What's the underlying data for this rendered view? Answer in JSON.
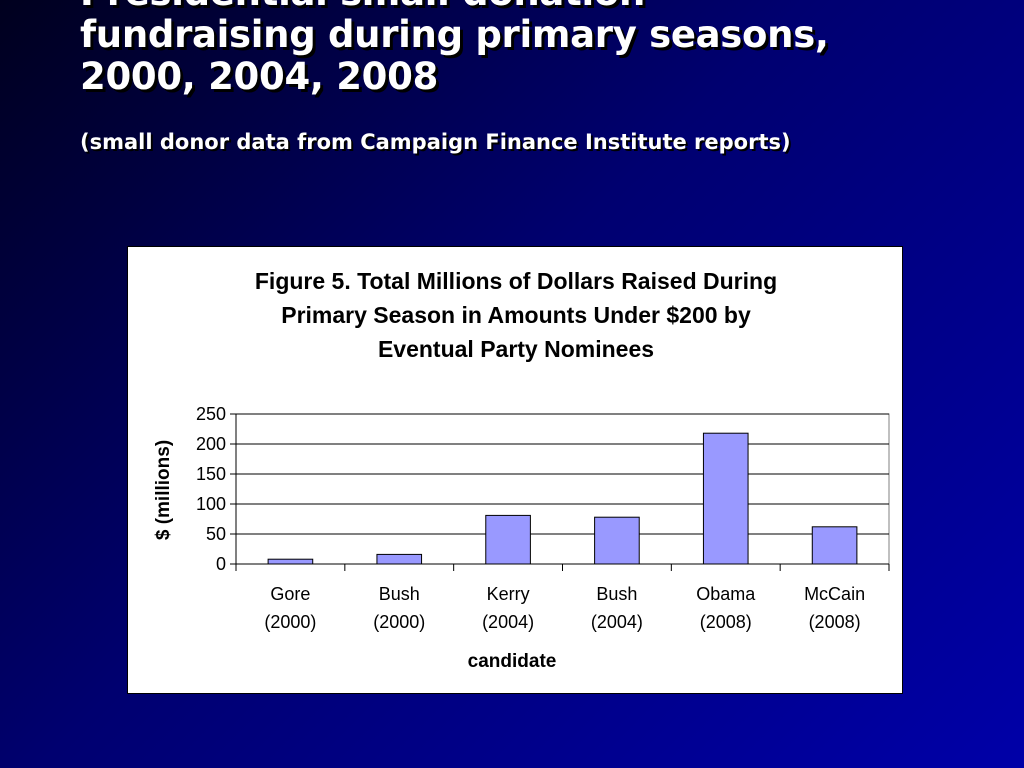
{
  "slide": {
    "title_lines": [
      "Presidential small donation",
      "fundraising during primary seasons,",
      "2000, 2004, 2008"
    ],
    "subtitle": "(small donor data from Campaign Finance Institute reports)"
  },
  "chart_data": {
    "type": "bar",
    "title_lines": [
      "Figure 5. Total Millions of Dollars Raised During",
      "Primary Season in Amounts Under $200 by",
      "Eventual Party Nominees"
    ],
    "categories": [
      [
        "Gore",
        "(2000)"
      ],
      [
        "Bush",
        "(2000)"
      ],
      [
        "Kerry",
        "(2004)"
      ],
      [
        "Bush",
        "(2004)"
      ],
      [
        "Obama",
        "(2008)"
      ],
      [
        "McCain",
        "(2008)"
      ]
    ],
    "values": [
      8,
      16,
      81,
      78,
      218,
      62
    ],
    "xlabel": "candidate",
    "ylabel": "$ (millions)",
    "ylim": [
      0,
      250
    ],
    "yticks": [
      0,
      50,
      100,
      150,
      200,
      250
    ],
    "grid": true,
    "bar_color": "#9999ff",
    "bar_edge_color": "#000000"
  }
}
